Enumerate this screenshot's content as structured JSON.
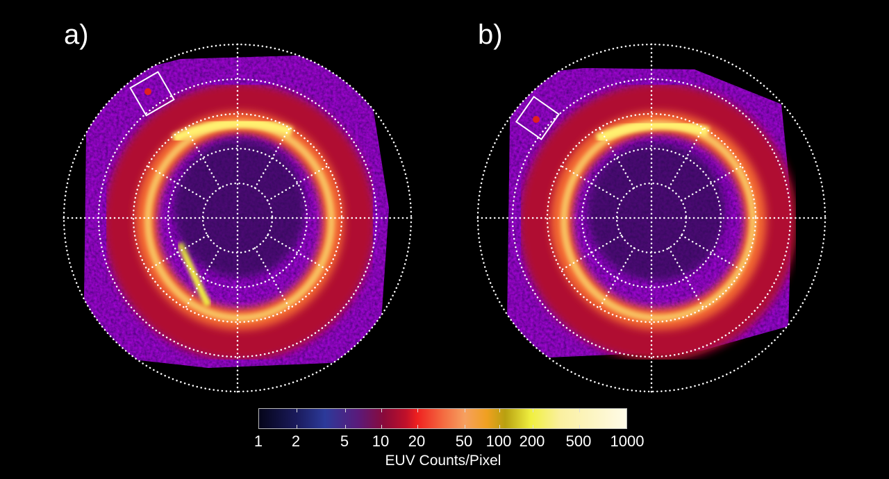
{
  "panels": [
    {
      "label": "a)"
    },
    {
      "label": "b)"
    }
  ],
  "colorbar": {
    "title": "EUV Counts/Pixel",
    "ticks": [
      "1",
      "2",
      "5",
      "10",
      "20",
      "50",
      "100",
      "200",
      "500",
      "1000"
    ],
    "colors": [
      "#05051a",
      "#2c3a9a",
      "#5a1a7a",
      "#c0102a",
      "#ee2020",
      "#f6a060",
      "#f0a020",
      "#b8a010",
      "#f0f040",
      "#fffbe8"
    ]
  }
}
